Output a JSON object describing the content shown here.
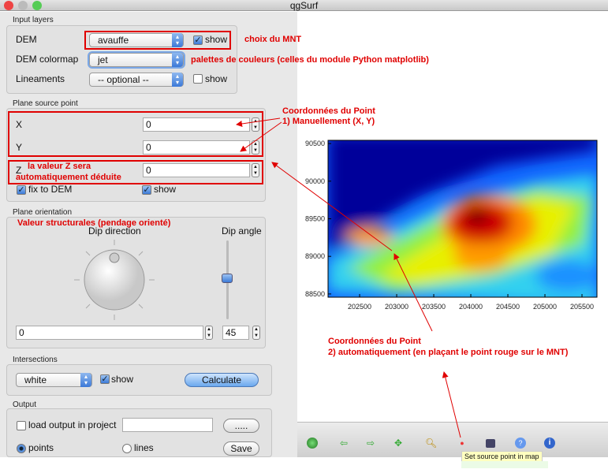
{
  "window": {
    "title": "qgSurf"
  },
  "input_layers": {
    "label": "Input layers",
    "dem_label": "DEM",
    "dem_value": "avauffe",
    "dem_show": "show",
    "dem_show_checked": true,
    "colormap_label": "DEM colormap",
    "colormap_value": "jet",
    "lineaments_label": "Lineaments",
    "lineaments_value": "-- optional --",
    "lineaments_show": "show",
    "lineaments_show_checked": false
  },
  "source_point": {
    "label": "Plane source point",
    "x_label": "X",
    "x_value": "0",
    "y_label": "Y",
    "y_value": "0",
    "z_label": "Z",
    "z_value": "0",
    "fix_label": "fix  to DEM",
    "fix_checked": true,
    "show_label": "show",
    "show_checked": true
  },
  "orientation": {
    "label": "Plane orientation",
    "dip_direction_label": "Dip direction",
    "dip_angle_label": "Dip angle",
    "dip_direction_value": "0",
    "dip_angle_value": "45"
  },
  "intersections": {
    "label": "Intersections",
    "color_value": "white",
    "show_label": "show",
    "show_checked": true,
    "calculate": "Calculate"
  },
  "output": {
    "label": "Output",
    "load_label": "load output in project",
    "load_checked": false,
    "path_value": "",
    "browse": ".....",
    "points": "points",
    "lines": "lines",
    "selected": "points",
    "save": "Save"
  },
  "toolbar": {
    "icons": [
      "home-icon",
      "back-icon",
      "forward-icon",
      "pan-icon",
      "zoom-icon",
      "set-point-icon",
      "save-image-icon",
      "help-icon",
      "info-icon"
    ],
    "tooltip": "Set source point in map"
  },
  "annotations": {
    "dem": "choix du MNT",
    "colormap": "palettes de couleurs (celles du module Python matplotlib)",
    "coord1_title": "Coordonnées du Point",
    "coord1_sub": "1) Manuellement (X, Y)",
    "z1": "la valeur Z sera",
    "z2": "automatiquement déduite",
    "structural": "Valeur structurales (pendage orienté)",
    "coord2_title": "Coordonnées du Point",
    "coord2_sub": "2) automatiquement (en plaçant le point rouge sur le MNT)",
    "color": "#e00000"
  },
  "chart_data": {
    "type": "heatmap",
    "colormap": "jet",
    "xlim": [
      202074,
      205702
    ],
    "ylim": [
      88457,
      90543
    ],
    "xticks": [
      "202500",
      "203000",
      "203500",
      "204000",
      "204500",
      "205000",
      "205500"
    ],
    "yticks": [
      "90500",
      "90000",
      "89500",
      "89000",
      "88500"
    ],
    "peak": {
      "x": 204250,
      "y": 89500
    }
  }
}
